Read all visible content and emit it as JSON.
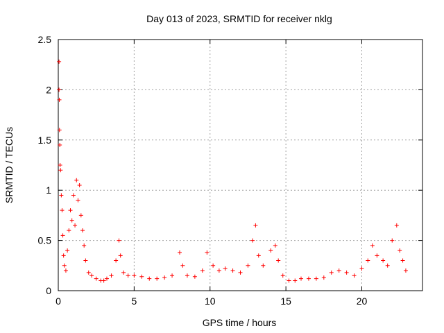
{
  "chart_data": {
    "type": "scatter",
    "title": "Day 013 of 2023, SRMTID for receiver nklg",
    "xlabel": "GPS time / hours",
    "ylabel": "SRMTID / TECUs",
    "xlim": [
      0,
      24
    ],
    "ylim": [
      0,
      2.5
    ],
    "xticks": [
      0,
      5,
      10,
      15,
      20
    ],
    "xtick_labels": [
      "0",
      "5",
      "10",
      "15",
      "20"
    ],
    "yticks": [
      0,
      0.5,
      1,
      1.5,
      2,
      2.5
    ],
    "ytick_labels": [
      "0",
      "0.5",
      "1",
      "1.5",
      "2",
      "2.5"
    ],
    "grid": true,
    "marker": "+",
    "colors": {
      "series": "#ff0000",
      "grid": "#a0a0a0",
      "axis": "#000000"
    },
    "series": [
      {
        "name": "SRMTID",
        "x": [
          0.05,
          0.05,
          0.07,
          0.08,
          0.1,
          0.12,
          0.15,
          0.2,
          0.25,
          0.3,
          0.35,
          0.4,
          0.5,
          0.6,
          0.7,
          0.8,
          0.9,
          1.0,
          1.1,
          1.2,
          1.3,
          1.4,
          1.5,
          1.6,
          1.7,
          1.8,
          2.0,
          2.2,
          2.5,
          2.8,
          3.0,
          3.2,
          3.5,
          3.8,
          4.0,
          4.1,
          4.3,
          4.6,
          5.0,
          5.5,
          6.0,
          6.5,
          7.0,
          7.5,
          8.0,
          8.2,
          8.5,
          9.0,
          9.5,
          9.8,
          10.2,
          10.6,
          11.0,
          11.5,
          12.0,
          12.5,
          12.8,
          13.0,
          13.2,
          13.5,
          14.0,
          14.3,
          14.5,
          14.8,
          15.2,
          15.6,
          16.0,
          16.5,
          17.0,
          17.5,
          18.0,
          18.5,
          19.0,
          19.5,
          20.0,
          20.4,
          20.7,
          21.0,
          21.4,
          21.7,
          22.0,
          22.3,
          22.5,
          22.7,
          22.9
        ],
        "y": [
          2.28,
          2.0,
          1.9,
          1.6,
          1.45,
          1.25,
          1.2,
          0.95,
          0.8,
          0.55,
          0.35,
          0.25,
          0.2,
          0.4,
          0.6,
          0.8,
          0.7,
          0.95,
          0.65,
          1.1,
          0.9,
          1.05,
          0.75,
          0.6,
          0.45,
          0.3,
          0.18,
          0.15,
          0.12,
          0.1,
          0.1,
          0.12,
          0.15,
          0.3,
          0.5,
          0.35,
          0.18,
          0.15,
          0.15,
          0.14,
          0.12,
          0.12,
          0.13,
          0.15,
          0.38,
          0.25,
          0.15,
          0.14,
          0.2,
          0.38,
          0.25,
          0.2,
          0.22,
          0.2,
          0.18,
          0.25,
          0.5,
          0.65,
          0.35,
          0.25,
          0.4,
          0.45,
          0.3,
          0.15,
          0.1,
          0.1,
          0.12,
          0.12,
          0.12,
          0.13,
          0.18,
          0.2,
          0.18,
          0.15,
          0.22,
          0.3,
          0.45,
          0.35,
          0.3,
          0.25,
          0.5,
          0.65,
          0.4,
          0.3,
          0.2
        ]
      }
    ]
  }
}
